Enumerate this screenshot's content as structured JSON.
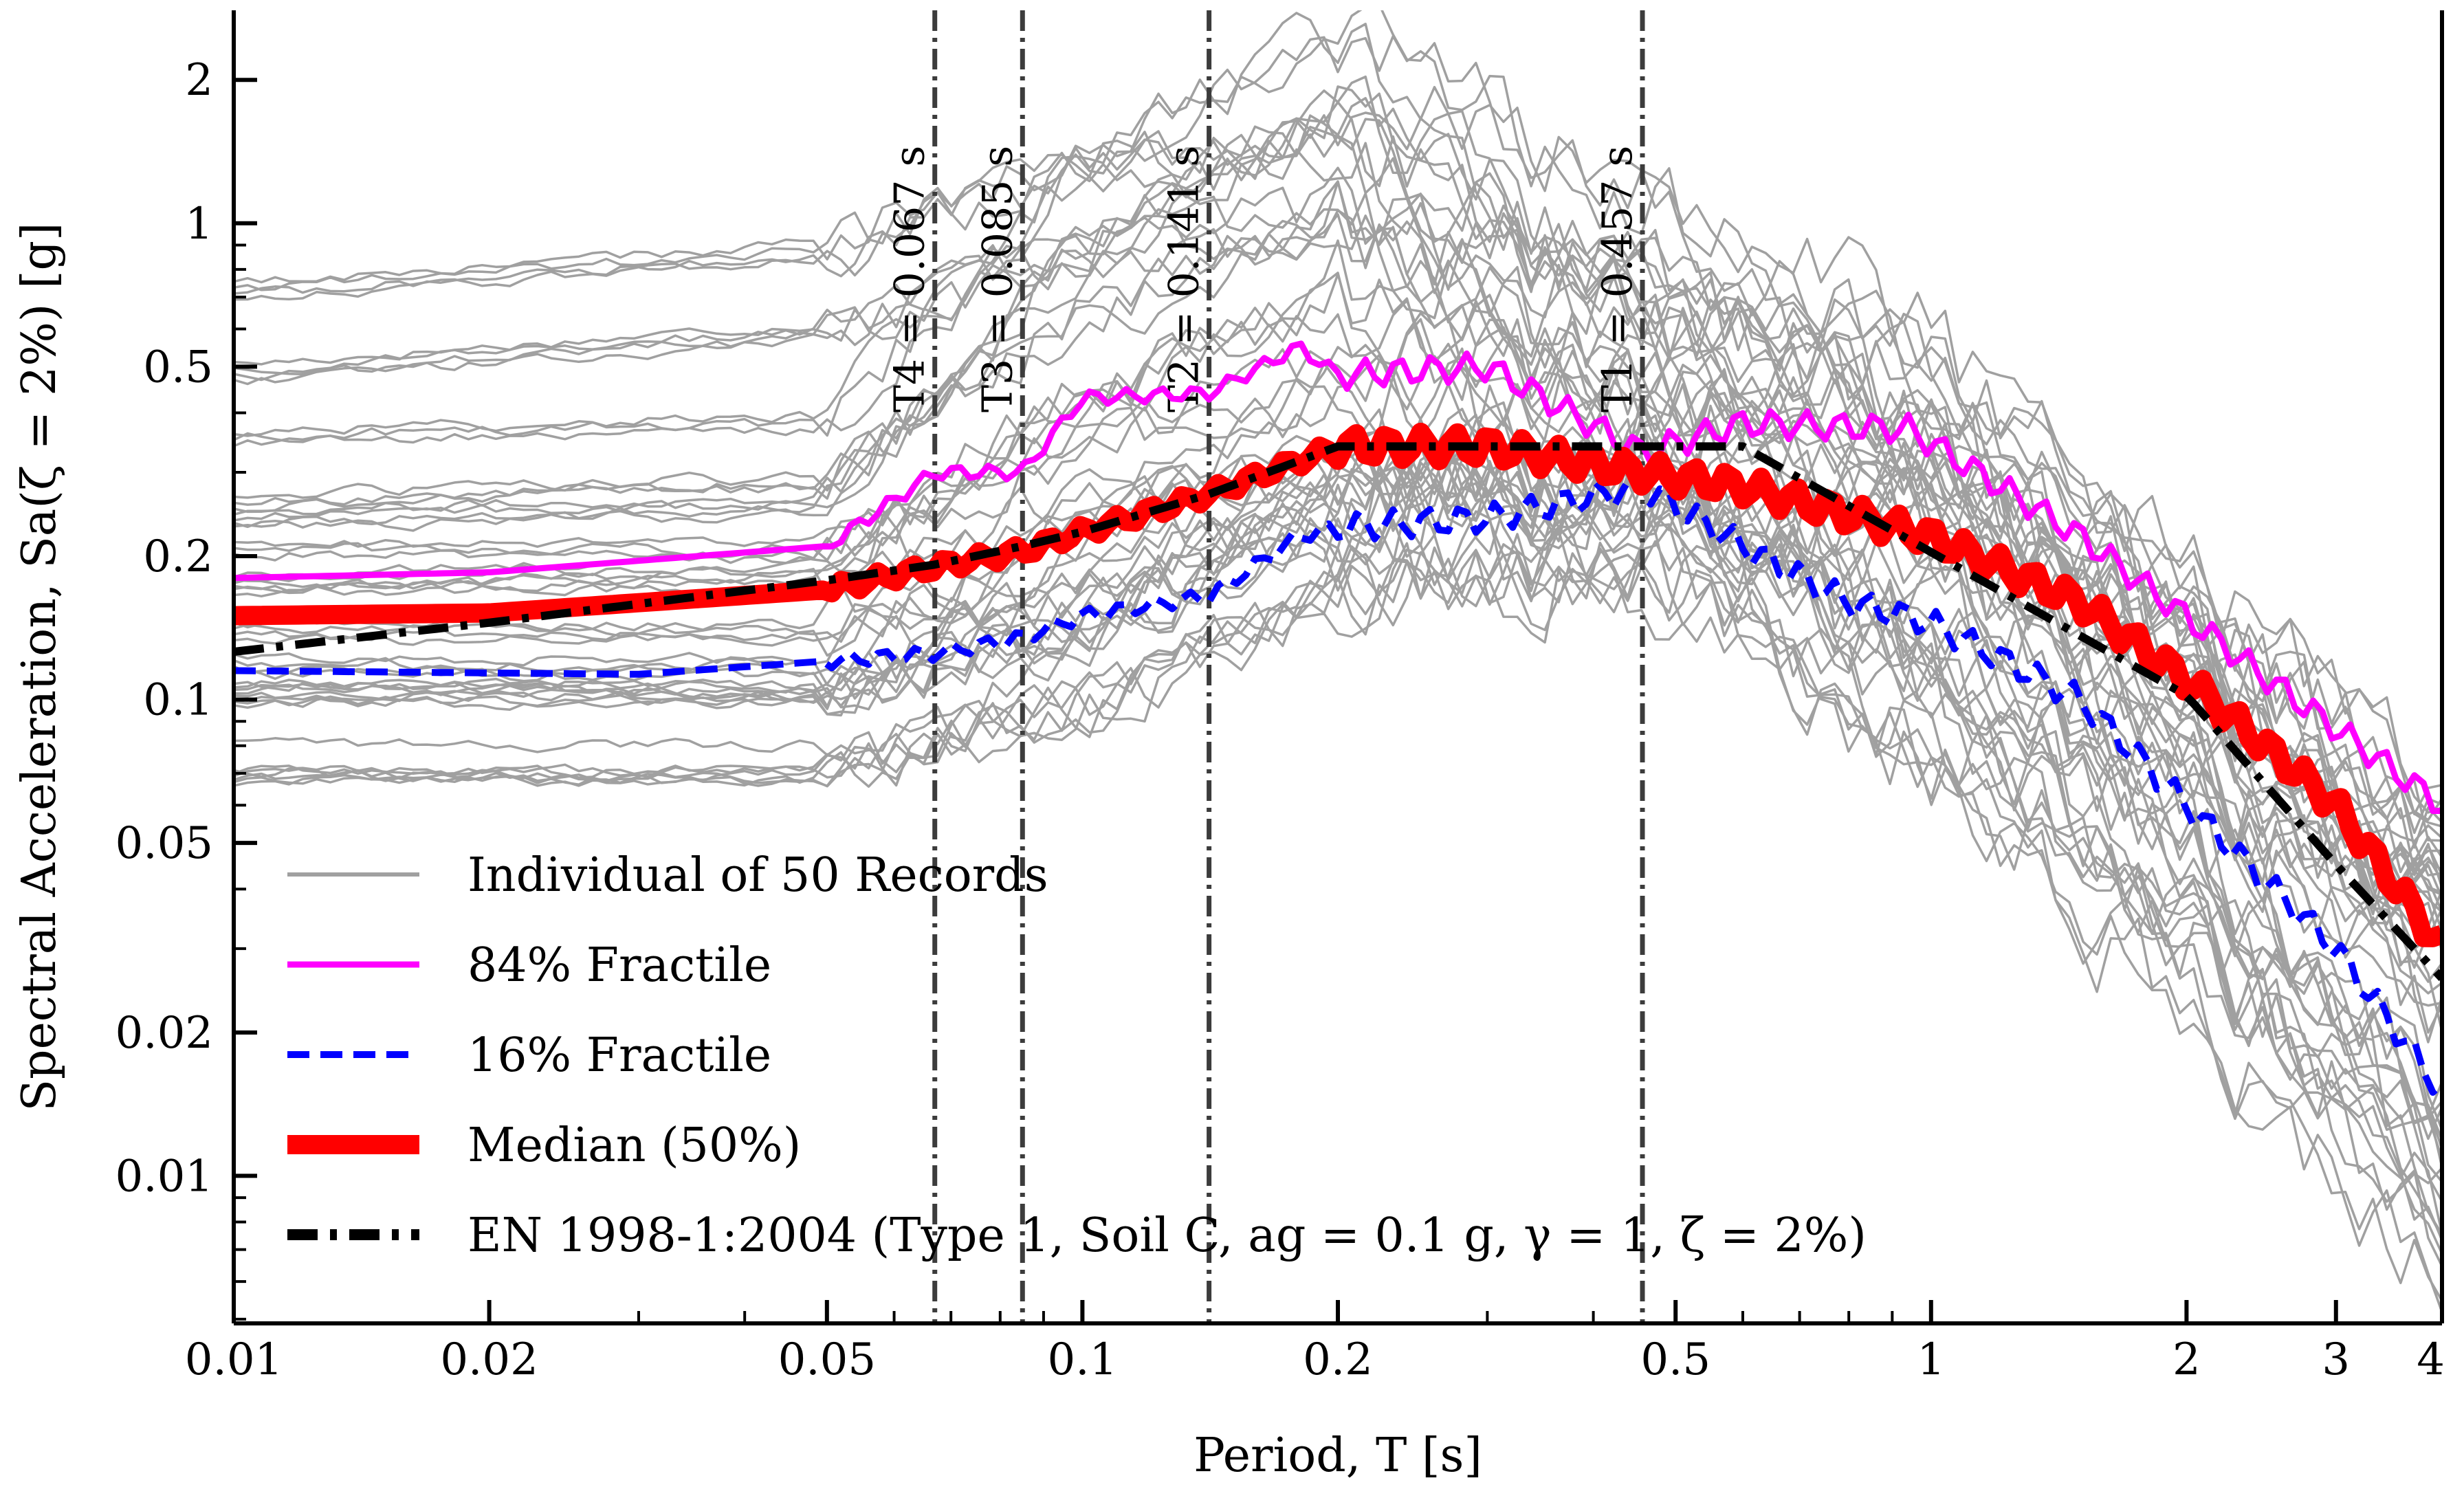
{
  "chart_data": {
    "type": "line",
    "title": "",
    "xlabel": "Period, T [s]",
    "ylabel": "Spectral Acceleration, Sa(ζ = 2%) [g]",
    "xscale": "log",
    "yscale": "log",
    "xlim": [
      0.01,
      4
    ],
    "ylim": [
      0.0049,
      2.8
    ],
    "grid": false,
    "legend_position": "bottom-left",
    "x_ticks": [
      {
        "value": 0.01,
        "label": "0.01"
      },
      {
        "value": 0.02,
        "label": "0.02"
      },
      {
        "value": 0.05,
        "label": "0.05"
      },
      {
        "value": 0.1,
        "label": "0.1"
      },
      {
        "value": 0.2,
        "label": "0.2"
      },
      {
        "value": 0.5,
        "label": "0.5"
      },
      {
        "value": 1,
        "label": "1"
      },
      {
        "value": 2,
        "label": "2"
      },
      {
        "value": 3,
        "label": "3"
      },
      {
        "value": 4,
        "label": "4"
      }
    ],
    "y_ticks": [
      {
        "value": 0.01,
        "label": "0.01"
      },
      {
        "value": 0.02,
        "label": "0.02"
      },
      {
        "value": 0.05,
        "label": "0.05"
      },
      {
        "value": 0.1,
        "label": "0.1"
      },
      {
        "value": 0.2,
        "label": "0.2"
      },
      {
        "value": 0.5,
        "label": "0.5"
      },
      {
        "value": 1,
        "label": "1"
      },
      {
        "value": 2,
        "label": "2"
      }
    ],
    "period_markers": [
      {
        "name": "T4",
        "value": 0.067,
        "label": "T4 = 0.067 s"
      },
      {
        "name": "T3",
        "value": 0.085,
        "label": "T3 = 0.085 s"
      },
      {
        "name": "T2",
        "value": 0.141,
        "label": "T2 = 0.141 s"
      },
      {
        "name": "T1",
        "value": 0.457,
        "label": "T1 = 0.457 s"
      }
    ],
    "record_series_name": "Individual of 50 Records",
    "record_series_count": 50,
    "record_example_x": [
      0.01,
      0.05,
      0.1,
      0.2,
      0.457,
      1,
      2,
      4
    ],
    "record_example_values": [
      [
        0.62,
        0.76,
        1.15,
        1.3,
        0.6,
        0.3,
        0.1,
        0.04
      ],
      [
        0.29,
        0.31,
        1.1,
        2.05,
        0.9,
        0.45,
        0.15,
        0.05
      ],
      [
        0.2,
        0.22,
        0.5,
        0.8,
        0.5,
        0.35,
        0.12,
        0.04
      ],
      [
        0.15,
        0.15,
        0.25,
        0.35,
        0.3,
        0.22,
        0.08,
        0.025
      ],
      [
        0.12,
        0.12,
        0.18,
        0.3,
        0.28,
        0.15,
        0.05,
        0.015
      ],
      [
        0.1,
        0.1,
        0.14,
        0.25,
        0.28,
        0.12,
        0.05,
        0.012
      ],
      [
        0.095,
        0.095,
        0.13,
        0.22,
        0.3,
        0.1,
        0.03,
        0.009
      ]
    ],
    "series": [
      {
        "name": "84% Fractile",
        "color": "#ff00ff",
        "style": "solid",
        "x": [
          0.01,
          0.02,
          0.05,
          0.067,
          0.085,
          0.1,
          0.141,
          0.18,
          0.2,
          0.3,
          0.457,
          0.6,
          0.94,
          1.5,
          2.5,
          4
        ],
        "values": [
          0.18,
          0.185,
          0.21,
          0.3,
          0.3,
          0.43,
          0.44,
          0.55,
          0.48,
          0.5,
          0.33,
          0.38,
          0.37,
          0.22,
          0.11,
          0.06
        ]
      },
      {
        "name": "16% Fractile",
        "color": "#0000ff",
        "style": "dashed",
        "x": [
          0.01,
          0.03,
          0.067,
          0.085,
          0.1,
          0.141,
          0.18,
          0.2,
          0.3,
          0.457,
          0.6,
          0.8,
          1,
          1.5,
          2,
          3,
          4
        ],
        "values": [
          0.115,
          0.113,
          0.125,
          0.135,
          0.15,
          0.165,
          0.22,
          0.23,
          0.24,
          0.28,
          0.21,
          0.16,
          0.145,
          0.1,
          0.06,
          0.03,
          0.015
        ]
      },
      {
        "name": "Median (50%)",
        "color": "#ff0000",
        "style": "solid",
        "x": [
          0.01,
          0.02,
          0.05,
          0.067,
          0.085,
          0.1,
          0.141,
          0.2,
          0.3,
          0.457,
          0.6,
          1,
          1.5,
          2,
          3,
          4
        ],
        "values": [
          0.15,
          0.152,
          0.17,
          0.19,
          0.205,
          0.225,
          0.27,
          0.34,
          0.34,
          0.3,
          0.28,
          0.22,
          0.16,
          0.11,
          0.06,
          0.03
        ]
      },
      {
        "name": "EN 1998-1:2004 (Type 1, Soil C, ag = 0.1 g, γ = 1, ζ = 2%)",
        "color": "#000000",
        "style": "dashdot",
        "x": [
          0.01,
          0.02,
          0.05,
          0.067,
          0.085,
          0.1,
          0.141,
          0.2,
          0.6,
          0.8,
          1,
          1.5,
          2,
          2.5,
          3,
          4
        ],
        "values": [
          0.126,
          0.145,
          0.178,
          0.192,
          0.21,
          0.225,
          0.27,
          0.34,
          0.34,
          0.255,
          0.204,
          0.136,
          0.102,
          0.065,
          0.045,
          0.026
        ]
      }
    ],
    "legend": [
      {
        "label": "Individual of 50 Records",
        "color": "#a0a0a0",
        "style": "solid"
      },
      {
        "label": "84% Fractile",
        "color": "#ff00ff",
        "style": "solid"
      },
      {
        "label": "16% Fractile",
        "color": "#0000ff",
        "style": "dashed"
      },
      {
        "label": "Median (50%)",
        "color": "#ff0000",
        "style": "solid"
      },
      {
        "label": "EN 1998-1:2004 (Type 1, Soil C, ag = 0.1 g, γ = 1, ζ = 2%)",
        "color": "#000000",
        "style": "dashdot"
      }
    ]
  }
}
